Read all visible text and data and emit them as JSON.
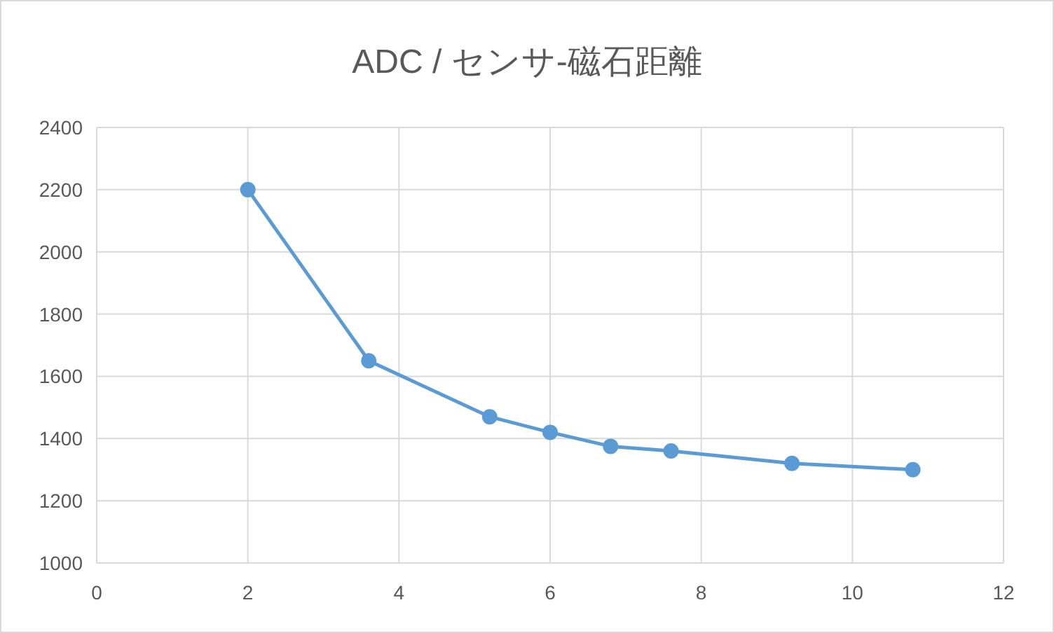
{
  "chart_data": {
    "type": "line",
    "title": "ADC / センサ-磁石距離",
    "x": [
      2,
      3.6,
      5.2,
      6,
      6.8,
      7.6,
      9.2,
      10.8
    ],
    "series": [
      {
        "color": "#5b9bd5",
        "values": [
          2200,
          1650,
          1470,
          1420,
          1375,
          1360,
          1320,
          1300
        ]
      }
    ],
    "xlim": [
      0,
      12
    ],
    "xticks": [
      0,
      2,
      4,
      6,
      8,
      10,
      12
    ],
    "ylim": [
      1000,
      2400
    ],
    "yticks": [
      1000,
      1200,
      1400,
      1600,
      1800,
      2000,
      2200,
      2400
    ],
    "grid": true,
    "marker": "circle"
  }
}
